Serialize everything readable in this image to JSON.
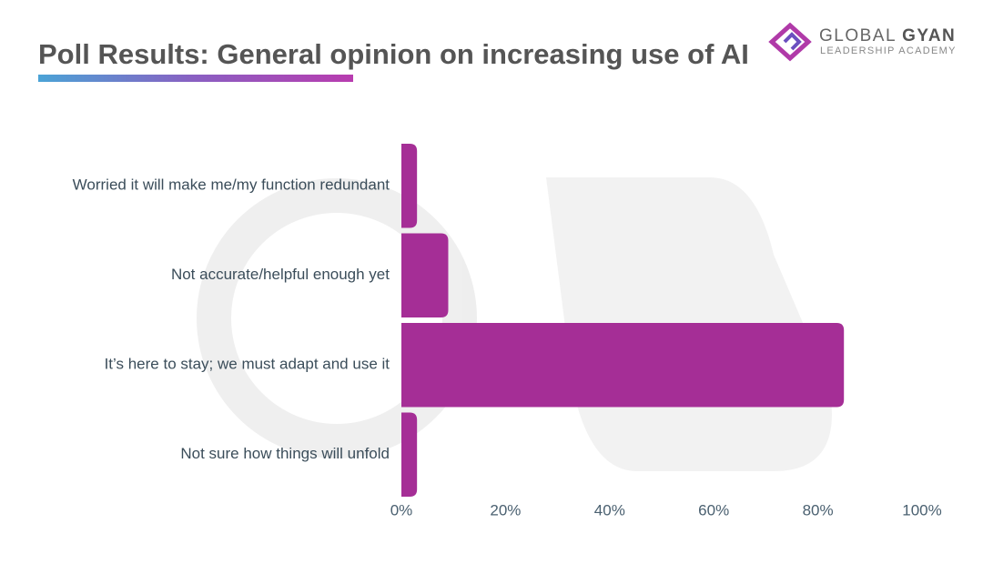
{
  "chart_data": {
    "type": "bar",
    "orientation": "horizontal",
    "title": "Poll Results: General opinion on increasing use of AI",
    "categories": [
      "Worried it will make me/my function redundant",
      "Not accurate/helpful enough yet",
      "It’s here to stay; we must adapt and use it",
      "Not sure how things will unfold"
    ],
    "values": [
      3,
      9,
      85,
      3
    ],
    "color": "#a52e96",
    "xlim": [
      0,
      100
    ],
    "xticks": [
      {
        "value": 0,
        "label": "0%"
      },
      {
        "value": 20,
        "label": "20%"
      },
      {
        "value": 40,
        "label": "40%"
      },
      {
        "value": 60,
        "label": "60%"
      },
      {
        "value": 80,
        "label": "80%"
      },
      {
        "value": 100,
        "label": "100%"
      }
    ],
    "grid": false
  },
  "logo": {
    "words": [
      "GLOBAL",
      "GYAN"
    ],
    "tagline": "LEADERSHIP ACADEMY"
  }
}
